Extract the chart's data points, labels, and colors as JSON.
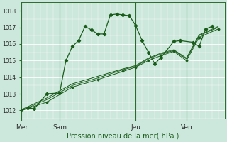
{
  "background_color": "#cce8dc",
  "grid_color": "#ffffff",
  "line_color": "#1a5c1a",
  "title": "Pression niveau de la mer( hPa )",
  "ylim": [
    1011.5,
    1018.5
  ],
  "yticks": [
    1012,
    1013,
    1014,
    1015,
    1016,
    1017,
    1018
  ],
  "day_labels": [
    "Mer",
    "Sam",
    "Jeu",
    "Ven"
  ],
  "day_positions": [
    0,
    3,
    9,
    13
  ],
  "xlim": [
    0,
    16
  ],
  "series1_x": [
    0,
    0.5,
    1.0,
    2.0,
    3.0,
    3.5,
    4.0,
    4.5,
    5.0,
    5.5,
    6.0,
    6.5,
    7.0,
    7.5,
    8.0,
    8.5,
    9.0,
    9.5,
    10.0,
    10.5,
    11.0,
    12.0,
    12.5,
    13.5,
    14.0,
    14.5,
    15.0
  ],
  "series1_y": [
    1012.0,
    1012.15,
    1012.1,
    1013.0,
    1013.05,
    1015.0,
    1015.85,
    1016.2,
    1017.05,
    1016.85,
    1016.6,
    1016.6,
    1017.75,
    1017.8,
    1017.75,
    1017.7,
    1017.1,
    1016.2,
    1015.5,
    1014.8,
    1015.2,
    1016.15,
    1016.2,
    1016.1,
    1015.85,
    1016.9,
    1017.05
  ],
  "series2_x": [
    0,
    2,
    4,
    6,
    8,
    9,
    10,
    11,
    12,
    13,
    14,
    15.5
  ],
  "series2_y": [
    1012.0,
    1012.5,
    1013.4,
    1013.85,
    1014.35,
    1014.6,
    1015.0,
    1015.3,
    1015.55,
    1015.0,
    1016.4,
    1016.9
  ],
  "series3_x": [
    0,
    2,
    4,
    6,
    8,
    9,
    10,
    11,
    12,
    13,
    14,
    15.5
  ],
  "series3_y": [
    1012.0,
    1012.65,
    1013.5,
    1013.95,
    1014.45,
    1014.65,
    1015.1,
    1015.4,
    1015.6,
    1015.1,
    1016.5,
    1017.0
  ],
  "series4_x": [
    0,
    2,
    4,
    6,
    8,
    9,
    10,
    11,
    12,
    13,
    14,
    15.5
  ],
  "series4_y": [
    1012.05,
    1012.75,
    1013.6,
    1014.05,
    1014.5,
    1014.7,
    1015.15,
    1015.45,
    1015.65,
    1015.15,
    1016.55,
    1017.05
  ]
}
